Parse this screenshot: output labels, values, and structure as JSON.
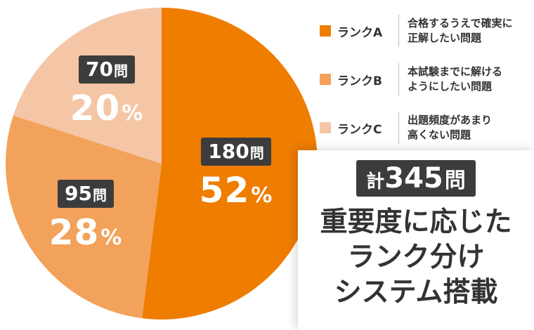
{
  "chart_data": {
    "type": "pie",
    "slices": [
      {
        "legend": "ランクA",
        "description": "合格するうえで確実に\n正解したい問題",
        "count": "180",
        "percent": "52",
        "value": 52,
        "color": "#ee7d00"
      },
      {
        "legend": "ランクB",
        "description": "本試験までに解ける\nようにしたい問題",
        "count": "95",
        "percent": "28",
        "value": 28,
        "color": "#f2a25a"
      },
      {
        "legend": "ランクC",
        "description": "出題頻度があまり\n高くない問題",
        "count": "70",
        "percent": "20",
        "value": 20,
        "color": "#f4c6a6"
      }
    ],
    "count_unit": "問",
    "percent_unit": "%"
  },
  "total": {
    "prefix": "計",
    "value": "345",
    "unit": "問"
  },
  "headline": "重要度に応じた\nランク分け\nシステム搭載"
}
